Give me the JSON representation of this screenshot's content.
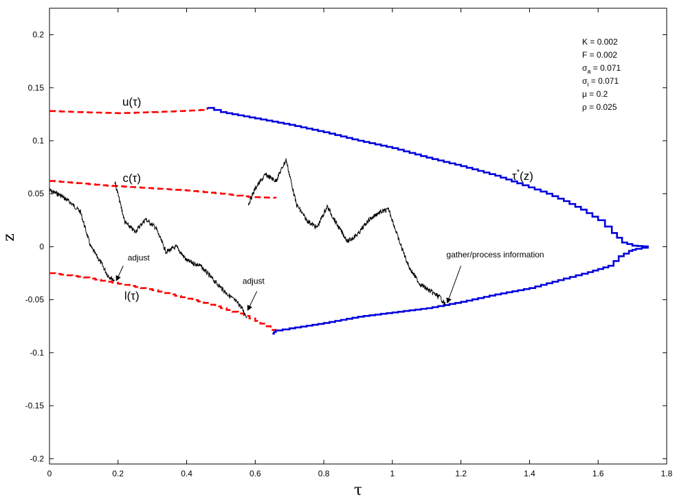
{
  "chart_data": {
    "type": "line",
    "title": "",
    "xlabel": "τ",
    "ylabel": "z",
    "xlim": [
      0,
      1.8
    ],
    "ylim": [
      -0.205,
      0.225
    ],
    "grid": false,
    "x_ticks": [
      {
        "value": 0,
        "label": "0"
      },
      {
        "value": 0.2,
        "label": "0.2"
      },
      {
        "value": 0.4,
        "label": "0.4"
      },
      {
        "value": 0.6,
        "label": "0.6"
      },
      {
        "value": 0.8,
        "label": "0.8"
      },
      {
        "value": 1.0,
        "label": "1"
      },
      {
        "value": 1.2,
        "label": "1.2"
      },
      {
        "value": 1.4,
        "label": "1.4"
      },
      {
        "value": 1.6,
        "label": "1.6"
      },
      {
        "value": 1.8,
        "label": "1.8"
      }
    ],
    "y_ticks": [
      {
        "value": -0.2,
        "label": "-0.2"
      },
      {
        "value": -0.15,
        "label": "-0.15"
      },
      {
        "value": -0.1,
        "label": "-0.1"
      },
      {
        "value": -0.05,
        "label": "-0.05"
      },
      {
        "value": 0,
        "label": "0"
      },
      {
        "value": 0.05,
        "label": "0.05"
      },
      {
        "value": 0.1,
        "label": "0.1"
      },
      {
        "value": 0.15,
        "label": "0.15"
      },
      {
        "value": 0.2,
        "label": "0.2"
      }
    ],
    "series": [
      {
        "key": "u",
        "color": "#ff0000",
        "style": "dashed",
        "x": [
          0.0,
          0.08,
          0.2,
          0.3,
          0.38,
          0.44,
          0.46
        ],
        "y": [
          0.128,
          0.127,
          0.126,
          0.127,
          0.128,
          0.129,
          0.131
        ]
      },
      {
        "key": "c",
        "color": "#ff0000",
        "style": "dashed",
        "x": [
          0.0,
          0.08,
          0.15,
          0.2,
          0.3,
          0.4,
          0.5,
          0.58,
          0.66
        ],
        "y": [
          0.062,
          0.06,
          0.058,
          0.057,
          0.055,
          0.053,
          0.05,
          0.047,
          0.046
        ]
      },
      {
        "key": "l",
        "color": "#ff0000",
        "style": "dashed",
        "x": [
          0.0,
          0.05,
          0.1,
          0.15,
          0.2,
          0.25,
          0.3,
          0.35,
          0.4,
          0.45,
          0.5,
          0.55,
          0.6,
          0.63,
          0.66
        ],
        "y": [
          -0.025,
          -0.027,
          -0.029,
          -0.032,
          -0.035,
          -0.038,
          -0.041,
          -0.045,
          -0.049,
          -0.053,
          -0.058,
          -0.063,
          -0.07,
          -0.075,
          -0.082
        ]
      },
      {
        "key": "upper-boundary",
        "color": "#0000dd",
        "style": "solid-step",
        "x": [
          0.46,
          0.5,
          0.6,
          0.7,
          0.8,
          0.9,
          1.0,
          1.1,
          1.2,
          1.3,
          1.38,
          1.45,
          1.5,
          1.55,
          1.6,
          1.64,
          1.67,
          1.7,
          1.745
        ],
        "y": [
          0.131,
          0.127,
          0.121,
          0.115,
          0.108,
          0.1,
          0.093,
          0.084,
          0.076,
          0.067,
          0.058,
          0.05,
          0.043,
          0.035,
          0.025,
          0.013,
          0.004,
          0.001,
          0.0
        ]
      },
      {
        "key": "lower-boundary",
        "color": "#0000dd",
        "style": "solid-step",
        "x": [
          0.65,
          0.66,
          0.7,
          0.8,
          0.9,
          1.0,
          1.1,
          1.15,
          1.2,
          1.3,
          1.4,
          1.5,
          1.57,
          1.63,
          1.66,
          1.69,
          1.71,
          1.745
        ],
        "y": [
          -0.082,
          -0.079,
          -0.077,
          -0.072,
          -0.066,
          -0.062,
          -0.058,
          -0.055,
          -0.052,
          -0.045,
          -0.039,
          -0.03,
          -0.024,
          -0.018,
          -0.009,
          -0.004,
          -0.002,
          0.0
        ]
      },
      {
        "key": "path-1",
        "color": "#000000",
        "style": "solid-jagged",
        "x": [
          0.0,
          0.03,
          0.06,
          0.09,
          0.12,
          0.15,
          0.17,
          0.19
        ],
        "y": [
          0.053,
          0.049,
          0.042,
          0.033,
          0.0,
          -0.015,
          -0.027,
          -0.032
        ]
      },
      {
        "key": "path-2",
        "color": "#000000",
        "style": "solid-jagged",
        "x": [
          0.19,
          0.22,
          0.25,
          0.28,
          0.31,
          0.34,
          0.37,
          0.4,
          0.44,
          0.48,
          0.52,
          0.555,
          0.575
        ],
        "y": [
          0.062,
          0.023,
          0.014,
          0.026,
          0.018,
          -0.005,
          0.0,
          -0.013,
          -0.018,
          -0.032,
          -0.045,
          -0.055,
          -0.066
        ]
      },
      {
        "key": "path-3",
        "color": "#000000",
        "style": "solid-jagged",
        "x": [
          0.58,
          0.6,
          0.63,
          0.66,
          0.69,
          0.72,
          0.75,
          0.78,
          0.81,
          0.84,
          0.87,
          0.9,
          0.93,
          0.96,
          0.99,
          1.02,
          1.05,
          1.08,
          1.11,
          1.14,
          1.155
        ],
        "y": [
          0.04,
          0.055,
          0.068,
          0.062,
          0.082,
          0.04,
          0.025,
          0.018,
          0.038,
          0.02,
          0.005,
          0.012,
          0.025,
          0.032,
          0.035,
          0.005,
          -0.02,
          -0.035,
          -0.042,
          -0.048,
          -0.055
        ]
      }
    ],
    "curve_labels": [
      {
        "key": "u",
        "text": "u(τ)",
        "x": 0.24,
        "y": 0.133
      },
      {
        "key": "c",
        "text": "c(τ)",
        "x": 0.24,
        "y": 0.061
      },
      {
        "key": "l",
        "text": "l(τ)",
        "x": 0.24,
        "y": -0.05
      },
      {
        "key": "tau-star",
        "prefix": "τ",
        "sup": "*",
        "suffix": "(z)",
        "x": 1.38,
        "y": 0.063
      }
    ],
    "parameters": [
      {
        "key": "K",
        "prefix": "K",
        "sub": "",
        "value": " = 0.002"
      },
      {
        "key": "F",
        "prefix": "F",
        "sub": "",
        "value": " = 0.002"
      },
      {
        "key": "sigma-a",
        "prefix": "σ",
        "sub": "a",
        "value": " = 0.071"
      },
      {
        "key": "sigma-i",
        "prefix": "σ",
        "sub": "i",
        "value": " = 0.071"
      },
      {
        "key": "mu",
        "prefix": "μ",
        "sub": "",
        "value": " = 0.2"
      },
      {
        "key": "rho",
        "prefix": "ρ",
        "sub": "",
        "value": " = 0.025"
      }
    ],
    "annotations": [
      {
        "key": "adjust-1",
        "text": "adjust",
        "text_x": 0.26,
        "text_y": -0.013,
        "arrow_from_x": 0.215,
        "arrow_from_y": -0.018,
        "arrow_to_x": 0.195,
        "arrow_to_y": -0.032
      },
      {
        "key": "adjust-2",
        "text": "adjust",
        "text_x": 0.595,
        "text_y": -0.035,
        "arrow_from_x": 0.605,
        "arrow_from_y": -0.042,
        "arrow_to_x": 0.578,
        "arrow_to_y": -0.06
      },
      {
        "key": "gather",
        "text": "gather/process information",
        "text_x": 1.3,
        "text_y": -0.01,
        "arrow_from_x": 1.2,
        "arrow_from_y": -0.018,
        "arrow_to_x": 1.16,
        "arrow_to_y": -0.053
      }
    ]
  }
}
